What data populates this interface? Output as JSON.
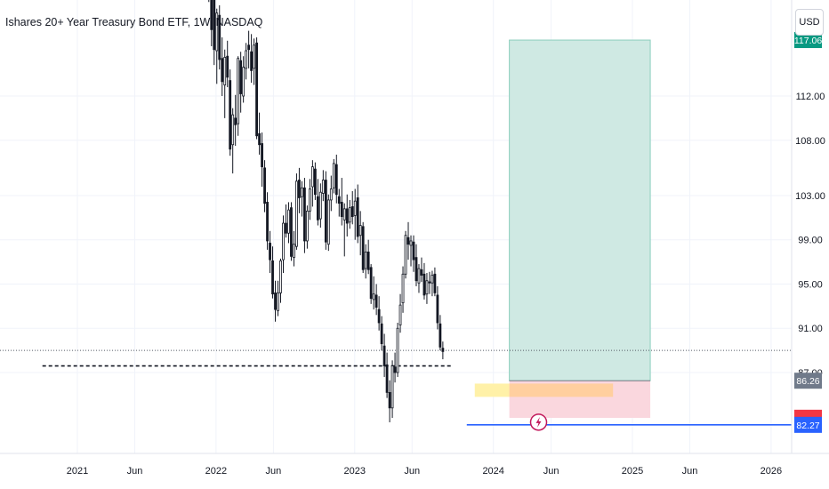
{
  "header": {
    "title": "Ishares 20+ Year Treasury Bond ETF, 1W, NASDAQ",
    "currency": "USD"
  },
  "colors": {
    "candle": "#131722",
    "profit_zone": "#cfe9e3",
    "profit_zone_border": "#8ccfbd",
    "loss_zone": "#fad7de",
    "entry_zone": "#fff1a8",
    "overlap_zone": "#ffcf9f",
    "support_line": "#2962ff",
    "badge_green": "#089981",
    "badge_grey": "#707a8a",
    "badge_blue": "#2962ff",
    "badge_red": "#f23645",
    "flash_icon": "#c2185b"
  },
  "chart_data": {
    "type": "candlestick",
    "title": "Ishares 20+ Year Treasury Bond ETF, 1W, NASDAQ",
    "xlabel": "",
    "ylabel": "",
    "x_tick_labels": [
      "2021",
      "Jun",
      "2022",
      "Jun",
      "2023",
      "Jun",
      "2024",
      "Jun",
      "2025",
      "Jun",
      "2026"
    ],
    "x_tick_dates": [
      "2021-01-01",
      "2021-06-01",
      "2022-01-01",
      "2022-06-01",
      "2023-01-01",
      "2023-06-01",
      "2024-01-01",
      "2024-06-01",
      "2025-01-01",
      "2025-06-01",
      "2026-01-01"
    ],
    "y_tick_labels": [
      "82.27",
      "86.26",
      "87.00",
      "91.00",
      "95.00",
      "99.00",
      "103.00",
      "108.00",
      "112.00",
      "117.06"
    ],
    "y_ticks": [
      87,
      91,
      95,
      99,
      103,
      108,
      112
    ],
    "ylim": [
      80.5,
      121.5
    ],
    "grid": true,
    "price_labels": [
      {
        "label": "117.06",
        "value": 117.06,
        "style": "green"
      },
      {
        "label": "86.26",
        "value": 86.26,
        "style": "grey"
      },
      {
        "label": "82.27",
        "value": 82.27,
        "style": "blue"
      }
    ],
    "long_position": {
      "start": "2024-02-12",
      "end": "2025-02-17",
      "target": 117.06,
      "entry": 86.26,
      "stop": 82.9,
      "entry_highlight": {
        "start": "2023-11-13",
        "end": "2024-11-11",
        "top": 86.0,
        "bottom": 84.8
      }
    },
    "support_line": {
      "start": "2023-10-23",
      "end": "2026-03-30",
      "value": 82.27
    },
    "current_price_line": 89.0,
    "dashed_level": {
      "start": "2020-10-01",
      "end": "2023-09-11",
      "value": 87.6
    },
    "candles_start": "2021-11-01",
    "candles_ohlc": [
      [
        150.1,
        151.5,
        144.5,
        146.0
      ],
      [
        146.0,
        147.5,
        140.5,
        142.0
      ],
      [
        142.0,
        143.5,
        136.5,
        138.0
      ],
      [
        138.0,
        139.5,
        132.5,
        134.0
      ],
      [
        134.0,
        135.5,
        128.5,
        130.0
      ],
      [
        130.0,
        131.5,
        124.5,
        126.0
      ],
      [
        126.0,
        127.5,
        120.5,
        122.0
      ],
      [
        122.0,
        123.5,
        116.5,
        118.0
      ],
      [
        120.8,
        122.2,
        114.8,
        116.2
      ],
      [
        116.1,
        119.9,
        113.1,
        119.5
      ],
      [
        119.3,
        120.2,
        114.4,
        115.3
      ],
      [
        115.4,
        117.3,
        112.0,
        113.3
      ],
      [
        113.0,
        116.2,
        110.0,
        115.5
      ],
      [
        115.6,
        117.0,
        112.8,
        113.7
      ],
      [
        113.4,
        114.4,
        106.6,
        107.2
      ],
      [
        107.6,
        110.9,
        105.0,
        110.3
      ],
      [
        110.0,
        112.1,
        107.5,
        109.4
      ],
      [
        109.5,
        115.6,
        108.4,
        115.4
      ],
      [
        115.2,
        116.0,
        110.5,
        112.2
      ],
      [
        112.0,
        115.6,
        111.4,
        114.6
      ],
      [
        114.5,
        116.8,
        113.5,
        116.1
      ],
      [
        116.6,
        117.9,
        114.5,
        116.2
      ],
      [
        116.0,
        117.6,
        113.2,
        114.3
      ],
      [
        114.5,
        117.2,
        113.0,
        116.6
      ],
      [
        116.8,
        117.3,
        108.1,
        108.4
      ],
      [
        108.6,
        110.5,
        106.7,
        107.6
      ],
      [
        107.7,
        108.7,
        103.8,
        105.6
      ],
      [
        105.5,
        106.2,
        101.5,
        102.3
      ],
      [
        102.4,
        103.3,
        98.1,
        98.9
      ],
      [
        98.7,
        99.8,
        96.0,
        97.2
      ],
      [
        97.1,
        98.4,
        93.7,
        94.1
      ],
      [
        94.2,
        95.3,
        91.6,
        92.7
      ],
      [
        92.6,
        95.3,
        92.1,
        94.2
      ],
      [
        94.2,
        97.3,
        93.3,
        97.1
      ],
      [
        97.2,
        101.2,
        96.0,
        100.5
      ],
      [
        100.5,
        102.2,
        99.2,
        99.6
      ],
      [
        99.6,
        102.4,
        98.7,
        101.7
      ],
      [
        101.9,
        102.4,
        97.1,
        97.5
      ],
      [
        97.4,
        99.8,
        96.6,
        98.6
      ],
      [
        98.4,
        105.0,
        98.1,
        104.3
      ],
      [
        104.4,
        105.5,
        101.4,
        102.8
      ],
      [
        102.9,
        104.3,
        101.1,
        103.7
      ],
      [
        103.7,
        104.6,
        97.8,
        98.9
      ],
      [
        98.9,
        102.1,
        98.2,
        101.6
      ],
      [
        101.6,
        104.5,
        100.8,
        103.6
      ],
      [
        103.8,
        106.2,
        102.0,
        105.6
      ],
      [
        105.4,
        106.0,
        102.6,
        103.1
      ],
      [
        102.9,
        104.5,
        100.3,
        100.8
      ],
      [
        100.9,
        104.1,
        100.1,
        103.3
      ],
      [
        103.2,
        105.3,
        102.5,
        104.4
      ],
      [
        104.4,
        105.2,
        98.1,
        98.8
      ],
      [
        98.6,
        103.1,
        98.0,
        102.6
      ],
      [
        102.6,
        104.8,
        101.6,
        103.6
      ],
      [
        103.7,
        106.3,
        103.2,
        105.9
      ],
      [
        105.8,
        106.7,
        102.3,
        103.1
      ],
      [
        102.9,
        103.6,
        101.1,
        102.3
      ],
      [
        102.4,
        104.6,
        100.3,
        101.1
      ],
      [
        100.8,
        102.3,
        97.5,
        101.8
      ],
      [
        101.8,
        103.1,
        99.3,
        100.5
      ],
      [
        100.6,
        102.6,
        100.0,
        101.9
      ],
      [
        102.0,
        103.4,
        100.4,
        101.1
      ],
      [
        101.2,
        103.6,
        99.0,
        102.5
      ],
      [
        102.8,
        104.0,
        98.7,
        99.3
      ],
      [
        99.4,
        101.6,
        97.6,
        100.3
      ],
      [
        100.2,
        100.6,
        96.0,
        96.3
      ],
      [
        96.4,
        98.6,
        95.5,
        97.9
      ],
      [
        97.9,
        99.0,
        95.9,
        96.3
      ],
      [
        96.5,
        96.8,
        93.2,
        93.7
      ],
      [
        93.6,
        95.7,
        92.7,
        94.1
      ],
      [
        94.0,
        95.0,
        92.2,
        92.9
      ],
      [
        92.7,
        93.9,
        90.8,
        91.5
      ],
      [
        91.4,
        92.1,
        89.0,
        89.6
      ],
      [
        89.4,
        90.5,
        86.6,
        87.6
      ],
      [
        87.7,
        88.8,
        84.7,
        85.2
      ],
      [
        85.2,
        86.3,
        82.5,
        83.8
      ],
      [
        83.8,
        88.1,
        82.9,
        87.6
      ],
      [
        87.5,
        88.8,
        86.1,
        87.0
      ],
      [
        87.0,
        91.5,
        86.6,
        91.0
      ],
      [
        91.3,
        94.1,
        90.6,
        93.1
      ],
      [
        93.3,
        96.6,
        92.4,
        95.9
      ],
      [
        95.9,
        99.8,
        95.5,
        99.4
      ],
      [
        99.2,
        100.6,
        97.2,
        98.6
      ],
      [
        98.5,
        99.4,
        96.6,
        98.9
      ],
      [
        98.8,
        99.4,
        96.1,
        97.2
      ],
      [
        97.4,
        98.6,
        94.8,
        95.3
      ],
      [
        95.1,
        96.8,
        94.2,
        96.4
      ],
      [
        96.3,
        97.4,
        95.2,
        95.8
      ],
      [
        95.9,
        96.9,
        93.6,
        94.0
      ],
      [
        94.1,
        96.0,
        93.2,
        95.3
      ],
      [
        95.2,
        96.1,
        94.1,
        95.1
      ],
      [
        95.1,
        96.2,
        93.9,
        95.8
      ],
      [
        95.9,
        96.5,
        93.9,
        94.2
      ],
      [
        94.0,
        94.8,
        90.9,
        91.5
      ],
      [
        91.4,
        92.2,
        89.0,
        89.3
      ],
      [
        89.2,
        89.8,
        88.2,
        88.9
      ]
    ]
  }
}
